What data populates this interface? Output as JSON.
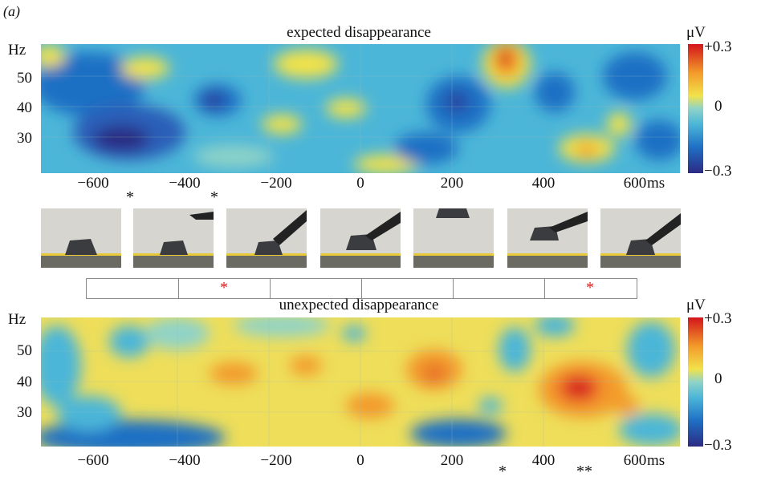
{
  "panel_label": "(a)",
  "top_panel": {
    "title": "expected disappearance",
    "y_unit": "Hz",
    "y_ticks": [
      "50",
      "40",
      "30"
    ],
    "x_unit": "ms",
    "x_ticks": [
      "−600",
      "−400",
      "−200",
      "0",
      "200",
      "400",
      "600"
    ],
    "colorbar": {
      "unit": "μV",
      "max": "+0.3",
      "mid": "0",
      "min": "−0.3"
    },
    "sig_marks": [
      "*",
      "*"
    ],
    "sig_times_ms": [
      -500,
      -300
    ]
  },
  "bottom_panel": {
    "title": "unexpected disappearance",
    "y_unit": "Hz",
    "y_ticks": [
      "50",
      "40",
      "30"
    ],
    "x_unit": "ms",
    "x_ticks": [
      "−600",
      "−400",
      "−200",
      "0",
      "200",
      "400",
      "600"
    ],
    "colorbar": {
      "unit": "μV",
      "max": "+0.3",
      "mid": "0",
      "min": "−0.3"
    },
    "sig_marks": [
      "*",
      "**"
    ],
    "sig_times_ms": [
      300,
      500
    ]
  },
  "strip": {
    "segments": 6,
    "red_marks": [
      "*",
      "*"
    ],
    "red_mark_segments": [
      1,
      5
    ]
  },
  "frames": {
    "count": 7,
    "description_free": true
  },
  "colors": {
    "deep_blue": "#2c2a82",
    "blue": "#1f6fc4",
    "cyan": "#4cb6d8",
    "yellow": "#f2e24a",
    "orange": "#f39a2a",
    "red": "#d3141c",
    "sig_red": "#e01616"
  }
}
